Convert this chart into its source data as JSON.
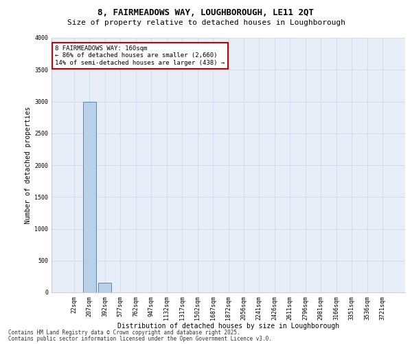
{
  "title_line1": "8, FAIRMEADOWS WAY, LOUGHBOROUGH, LE11 2QT",
  "title_line2": "Size of property relative to detached houses in Loughborough",
  "xlabel": "Distribution of detached houses by size in Loughborough",
  "ylabel": "Number of detached properties",
  "annotation_title": "8 FAIRMEADOWS WAY: 160sqm",
  "annotation_line2": "← 86% of detached houses are smaller (2,660)",
  "annotation_line3": "14% of semi-detached houses are larger (438) →",
  "footer_line1": "Contains HM Land Registry data © Crown copyright and database right 2025.",
  "footer_line2": "Contains public sector information licensed under the Open Government Licence v3.0.",
  "categories": [
    "22sqm",
    "207sqm",
    "392sqm",
    "577sqm",
    "762sqm",
    "947sqm",
    "1132sqm",
    "1317sqm",
    "1502sqm",
    "1687sqm",
    "1872sqm",
    "2056sqm",
    "2241sqm",
    "2426sqm",
    "2611sqm",
    "2796sqm",
    "2981sqm",
    "3166sqm",
    "3351sqm",
    "3536sqm",
    "3721sqm"
  ],
  "values": [
    0,
    3000,
    150,
    5,
    2,
    1,
    1,
    1,
    1,
    0,
    0,
    1,
    0,
    0,
    1,
    0,
    0,
    0,
    0,
    0,
    0
  ],
  "bar_color": "#b8d0e8",
  "bar_edge_color": "#5588bb",
  "ylim": [
    0,
    4000
  ],
  "yticks": [
    0,
    500,
    1000,
    1500,
    2000,
    2500,
    3000,
    3500,
    4000
  ],
  "bg_color": "#e8eef8",
  "annotation_box_edgecolor": "#cc0000",
  "title1_fontsize": 9,
  "title2_fontsize": 8,
  "tick_fontsize": 6,
  "ylabel_fontsize": 7,
  "xlabel_fontsize": 7,
  "footer_fontsize": 5.5
}
